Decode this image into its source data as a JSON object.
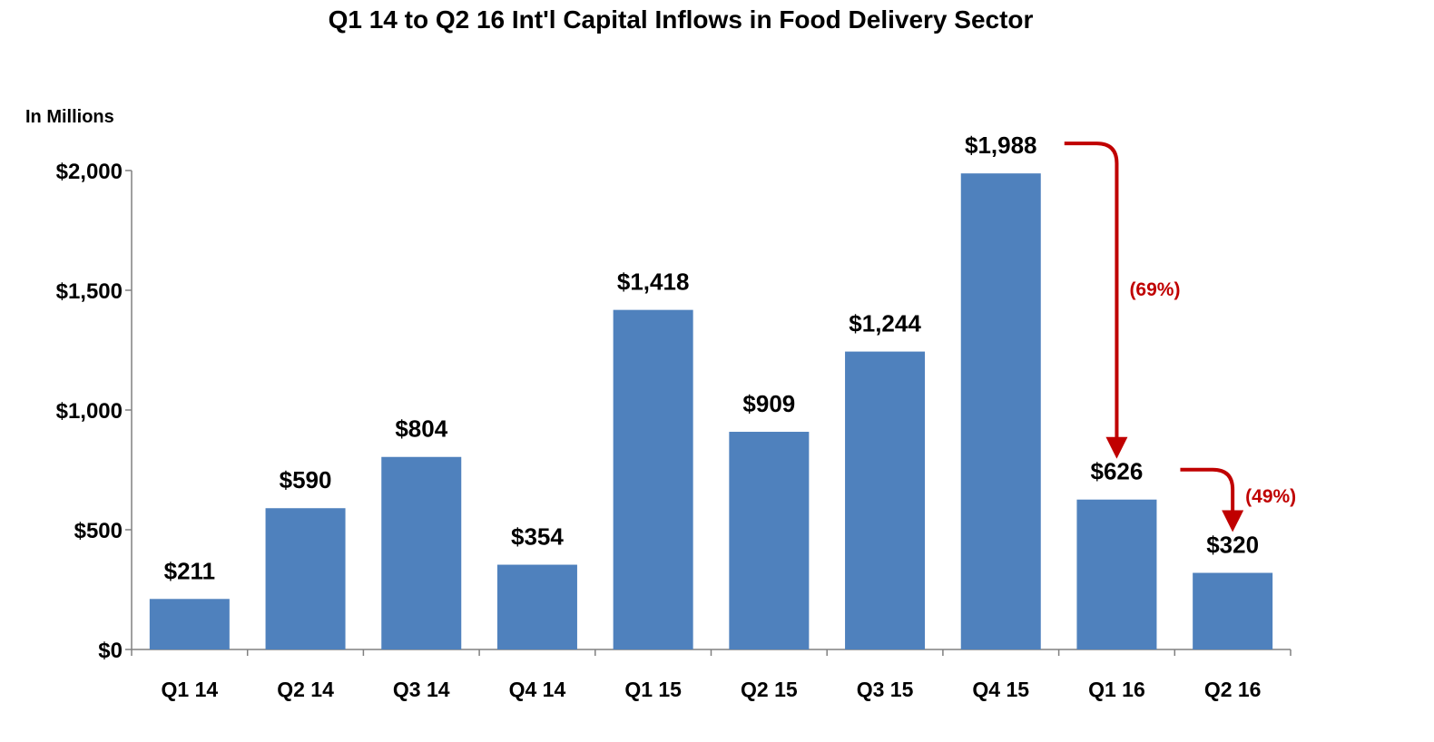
{
  "chart_data": {
    "type": "bar",
    "title": "Q1 14 to Q2 16 Int'l Capital Inflows in Food Delivery Sector",
    "unit_label": "In Millions",
    "categories": [
      "Q1 14",
      "Q2 14",
      "Q3 14",
      "Q4 14",
      "Q1 15",
      "Q2 15",
      "Q3 15",
      "Q4 15",
      "Q1 16",
      "Q2 16"
    ],
    "values": [
      211,
      590,
      804,
      354,
      1418,
      909,
      1244,
      1988,
      626,
      320
    ],
    "value_labels": [
      "$211",
      "$590",
      "$804",
      "$354",
      "$1,418",
      "$909",
      "$1,244",
      "$1,988",
      "$626",
      "$320"
    ],
    "ylim": [
      0,
      2000
    ],
    "yticks": [
      0,
      500,
      1000,
      1500,
      2000
    ],
    "ytick_labels": [
      "$0",
      "$500",
      "$1,000",
      "$1,500",
      "$2,000"
    ],
    "grid": false,
    "bar_color": "#4F81BD",
    "annotations": [
      {
        "from_category": "Q4 15",
        "to_category": "Q1 16",
        "text": "(69%)",
        "color": "#C00000"
      },
      {
        "from_category": "Q1 16",
        "to_category": "Q2 16",
        "text": "(49%)",
        "color": "#C00000"
      }
    ]
  }
}
